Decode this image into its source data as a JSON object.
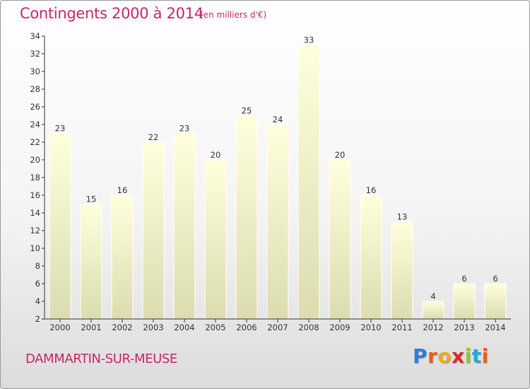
{
  "header": {
    "title": "Contingents 2000 à 2014",
    "subtitle": "(en milliers d'€)"
  },
  "footer": {
    "location": "DAMMARTIN-SUR-MEUSE",
    "logo": {
      "letters": [
        "P",
        "r",
        "o",
        "x",
        "i",
        "t",
        "i"
      ],
      "colors": [
        "#2f7dd6",
        "#e85d1d",
        "#f0a81b",
        "#d62b2b",
        "#8cc53e",
        "#2aa3d8",
        "#e85d1d"
      ]
    }
  },
  "chart_data": {
    "type": "bar",
    "categories": [
      "2000",
      "2001",
      "2002",
      "2003",
      "2004",
      "2005",
      "2006",
      "2007",
      "2008",
      "2009",
      "2010",
      "2011",
      "2012",
      "2013",
      "2014"
    ],
    "values": [
      23,
      15,
      16,
      22,
      23,
      20,
      25,
      24,
      33,
      20,
      16,
      13,
      4,
      6,
      6
    ],
    "title": "Contingents 2000 à 2014",
    "ylim": [
      2,
      34
    ],
    "yticks": [
      2,
      4,
      6,
      8,
      10,
      12,
      14,
      16,
      18,
      20,
      22,
      24,
      26,
      28,
      30,
      32,
      34
    ],
    "grid": false,
    "colors": {
      "bar_top": "#ffffdc",
      "bar_bottom": "#dcdcb0",
      "axis": "#333333",
      "text": "#333333"
    }
  }
}
